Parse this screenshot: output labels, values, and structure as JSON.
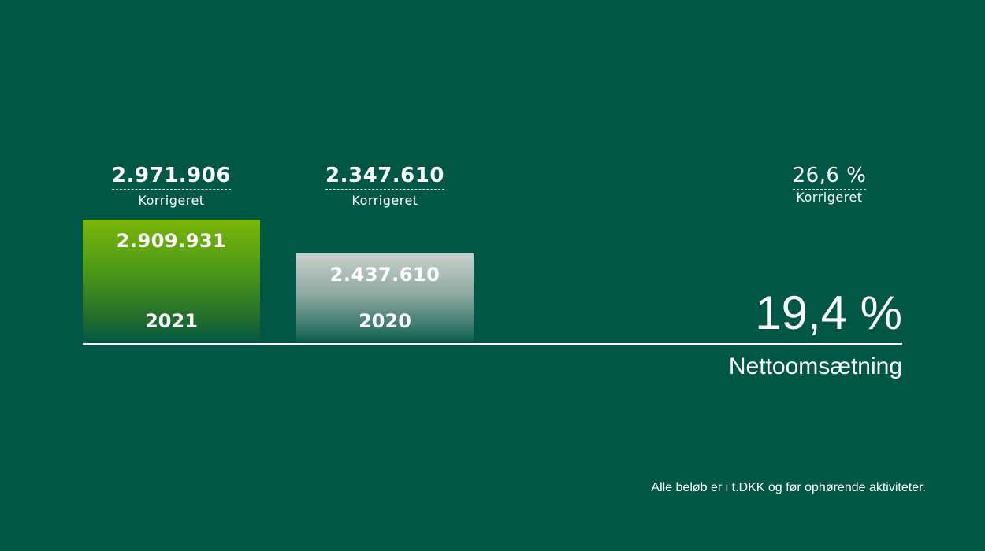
{
  "chart_data": {
    "type": "bar",
    "categories": [
      "2021",
      "2020"
    ],
    "values": [
      2909931,
      2437610
    ],
    "value_labels": [
      "2.909.931",
      "2.437.610"
    ],
    "corrected_values": [
      "2.971.906",
      "2.347.610"
    ],
    "corrected_label": "Korrigeret",
    "growth_percent": "19,4 %",
    "growth_corrected": "26,6 %",
    "metric": "Nettoomsætning",
    "footnote": "Alle beløb er i t.DKK og før ophørende aktiviteter.",
    "colors": {
      "background": "#005745",
      "bar_2021": "#7ab709",
      "bar_2020": "#c9d0cd",
      "text": "#ffffff"
    }
  }
}
